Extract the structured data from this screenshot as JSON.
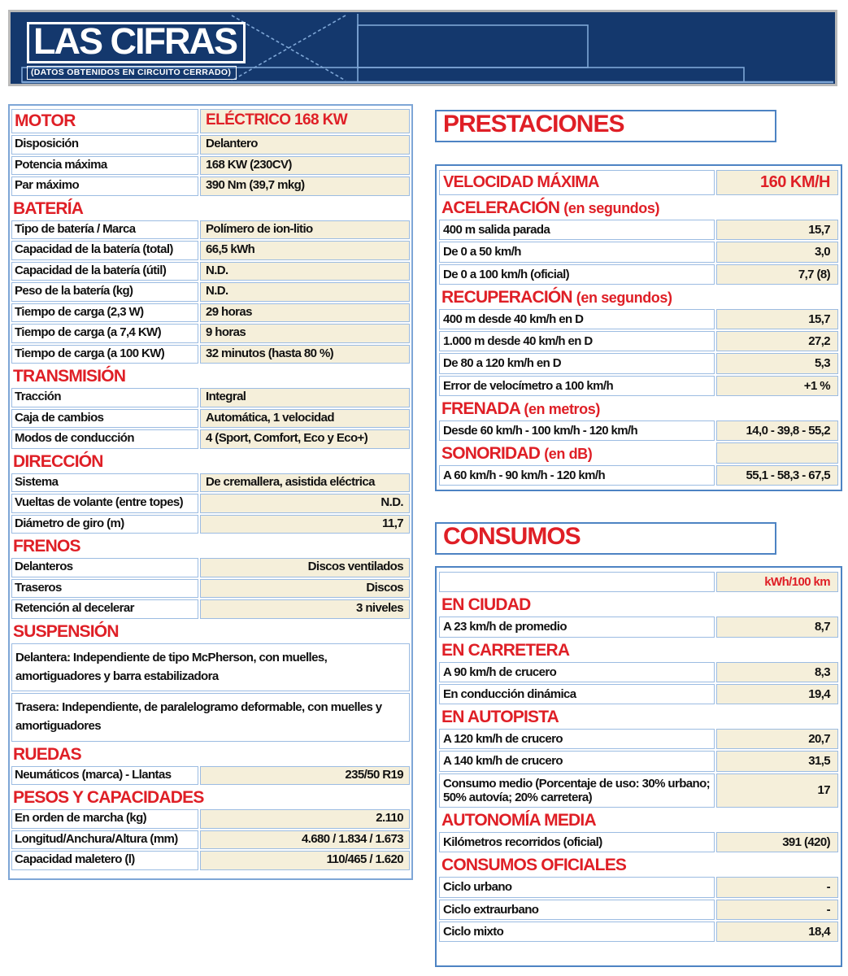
{
  "header": {
    "title": "LAS CIFRAS",
    "subtitle": "(DATOS OBTENIDOS EN CIRCUITO CERRADO)"
  },
  "colors": {
    "accent_red": "#df1f26",
    "banner_navy": "#14386d",
    "value_cell_beige": "#f5efda",
    "table_border_blue": "#4d83c3"
  },
  "spec_table": {
    "sections": [
      {
        "title": "MOTOR",
        "header_value": "ELÉCTRICO 168 KW",
        "rows": [
          {
            "label": "Disposición",
            "value": "Delantero",
            "align": "left"
          },
          {
            "label": "Potencia máxima",
            "value": "168 KW (230CV)",
            "align": "left"
          },
          {
            "label": "Par máximo",
            "value": "390 Nm (39,7 mkg)",
            "align": "left"
          }
        ]
      },
      {
        "title": "BATERÍA",
        "rows": [
          {
            "label": "Tipo de batería / Marca",
            "value": "Polímero de ion-litio",
            "align": "left"
          },
          {
            "label": "Capacidad de la batería (total)",
            "value": "66,5 kWh",
            "align": "left"
          },
          {
            "label": "Capacidad de la batería (útil)",
            "value": "N.D.",
            "align": "left"
          },
          {
            "label": "Peso de la batería (kg)",
            "value": "N.D.",
            "align": "left"
          },
          {
            "label": "Tiempo de carga (2,3 W)",
            "value": "29 horas",
            "align": "left"
          },
          {
            "label": "Tiempo de carga (a 7,4 KW)",
            "value": "9 horas",
            "align": "left"
          },
          {
            "label": "Tiempo de carga (a 100 KW)",
            "value": "32 minutos (hasta 80 %)",
            "align": "left"
          }
        ]
      },
      {
        "title": "TRANSMISIÓN",
        "rows": [
          {
            "label": "Tracción",
            "value": "Integral",
            "align": "left"
          },
          {
            "label": "Caja de cambios",
            "value": "Automática, 1 velocidad",
            "align": "left"
          },
          {
            "label": "Modos de conducción",
            "value": "4 (Sport, Comfort, Eco y Eco+)",
            "align": "left"
          }
        ]
      },
      {
        "title": "DIRECCIÓN",
        "rows": [
          {
            "label": "Sistema",
            "value": "De cremallera, asistida eléctrica",
            "align": "left"
          },
          {
            "label": "Vueltas de volante (entre topes)",
            "value": "N.D.",
            "align": "right"
          },
          {
            "label": "Diámetro de giro (m)",
            "value": "11,7",
            "align": "right"
          }
        ]
      },
      {
        "title": "FRENOS",
        "rows": [
          {
            "label": "Delanteros",
            "value": "Discos ventilados",
            "align": "right"
          },
          {
            "label": "Traseros",
            "value": "Discos",
            "align": "right"
          },
          {
            "label": "Retención al decelerar",
            "value": "3 niveles",
            "align": "right"
          }
        ]
      },
      {
        "title": "SUSPENSIÓN",
        "notes": [
          "Delantera: Independiente de tipo McPherson, con muelles, amortiguadores y barra estabilizadora",
          "Trasera: Independiente, de paralelogramo deformable, con muelles y amortiguadores"
        ]
      },
      {
        "title": "RUEDAS",
        "rows": [
          {
            "label": "Neumáticos (marca) - Llantas",
            "value": "235/50 R19",
            "align": "right"
          }
        ]
      },
      {
        "title": "PESOS Y CAPACIDADES",
        "rows": [
          {
            "label": "En orden de marcha (kg)",
            "value": "2.110",
            "align": "right"
          },
          {
            "label": "Longitud/Anchura/Altura (mm)",
            "value": "4.680 / 1.834 / 1.673",
            "align": "right"
          },
          {
            "label": "Capacidad maletero (l)",
            "value": "110/465 / 1.620",
            "align": "right"
          }
        ]
      }
    ]
  },
  "prestaciones": {
    "box_title": "PRESTACIONES",
    "top_row": {
      "label": "VELOCIDAD MÁXIMA",
      "value": "160 KM/H"
    },
    "sections": [
      {
        "title": "ACELERACIÓN",
        "suffix": "(en segundos)",
        "rows": [
          {
            "label": "400 m salida parada",
            "value": "15,7"
          },
          {
            "label": "De 0 a 50 km/h",
            "value": "3,0"
          },
          {
            "label": "De 0 a 100 km/h (oficial)",
            "value": "7,7 (8)"
          }
        ]
      },
      {
        "title": "RECUPERACIÓN",
        "suffix": "(en segundos)",
        "rows": [
          {
            "label": "400 m desde 40 km/h en D",
            "value": "15,7"
          },
          {
            "label": "1.000 m desde 40 km/h en D",
            "value": "27,2"
          },
          {
            "label": "De 80 a 120 km/h en D",
            "value": "5,3"
          },
          {
            "label": "Error de velocímetro a 100 km/h",
            "value": "+1 %"
          }
        ]
      },
      {
        "title": "FRENADA",
        "suffix": "(en metros)",
        "rows": [
          {
            "label": "Desde 60 km/h - 100 km/h - 120 km/h",
            "value": "14,0 - 39,8 - 55,2"
          }
        ]
      },
      {
        "title": "SONORIDAD",
        "suffix": "(en dB)",
        "header_value_cell": true,
        "rows": [
          {
            "label": "A 60 km/h - 90 km/h - 120 km/h",
            "value": "55,1 - 58,3 - 67,5"
          }
        ]
      }
    ]
  },
  "consumos": {
    "box_title": "CONSUMOS",
    "unit_header": "kWh/100 km",
    "sections": [
      {
        "title": "EN CIUDAD",
        "rows": [
          {
            "label": "A 23 km/h de promedio",
            "value": "8,7"
          }
        ]
      },
      {
        "title": "EN CARRETERA",
        "rows": [
          {
            "label": "A 90 km/h de crucero",
            "value": "8,3"
          },
          {
            "label": "En conducción dinámica",
            "value": "19,4"
          }
        ]
      },
      {
        "title": "EN AUTOPISTA",
        "rows": [
          {
            "label": "A 120 km/h de crucero",
            "value": "20,7"
          },
          {
            "label": "A 140 km/h de crucero",
            "value": "31,5"
          },
          {
            "label": "Consumo medio (Porcentaje de uso: 30% urbano; 50% autovía; 20% carretera)",
            "value": "17"
          }
        ]
      },
      {
        "title": "AUTONOMÍA MEDIA",
        "rows": [
          {
            "label": "Kilómetros recorridos (oficial)",
            "value": "391 (420)"
          }
        ]
      },
      {
        "title": "CONSUMOS OFICIALES",
        "rows": [
          {
            "label": "Ciclo urbano",
            "value": "-"
          },
          {
            "label": "Ciclo extraurbano",
            "value": "-"
          },
          {
            "label": "Ciclo mixto",
            "value": "18,4"
          }
        ]
      }
    ]
  }
}
